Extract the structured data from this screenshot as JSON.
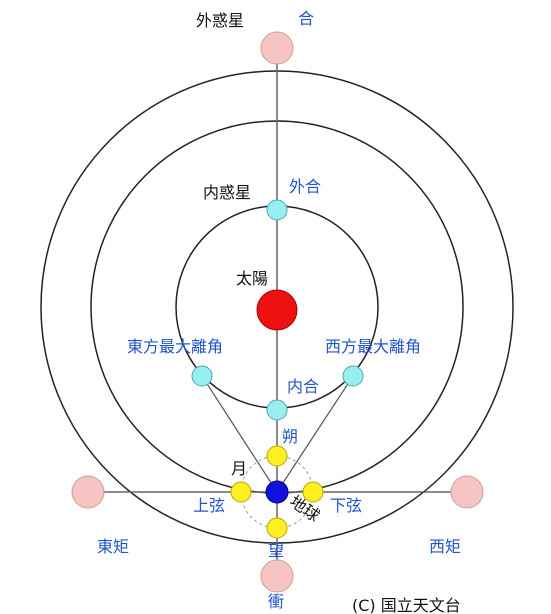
{
  "diagram": {
    "labels": {
      "outer_planet": "外惑星",
      "conjunction": "合",
      "inner_planet": "内惑星",
      "superior_conjunction": "外合",
      "sun": "太陽",
      "eastern_elongation": "東方最大離角",
      "western_elongation": "西方最大離角",
      "inferior_conjunction": "内合",
      "new_moon": "朔",
      "moon": "月",
      "first_quarter": "上弦",
      "last_quarter": "下弦",
      "earth": "地球",
      "full_moon": "望",
      "eastern_quadrature": "東矩",
      "western_quadrature": "西矩",
      "opposition": "衝"
    },
    "copyright": "(C) 国立天文台",
    "colors": {
      "sun": "#ee1111",
      "earth": "#1111dd",
      "inner_planet": "#99eef0",
      "outer_planet": "#f7c4c4",
      "moon": "#ffee22",
      "orbit": "#222222",
      "label_accent": "#2255cc"
    }
  }
}
